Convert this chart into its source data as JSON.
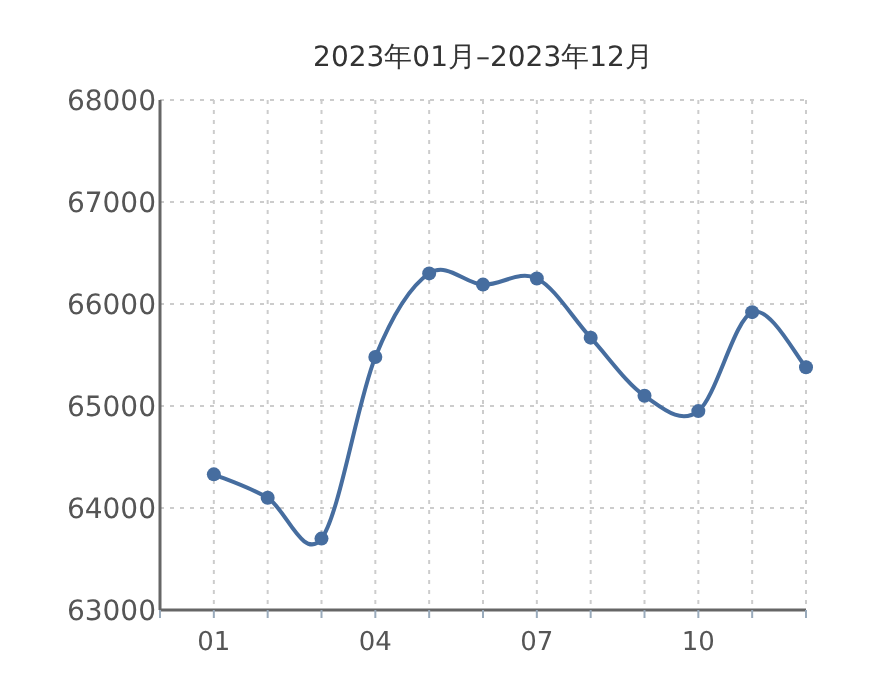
{
  "chart_data": {
    "type": "line",
    "title": "2023年01月–2023年12月",
    "categories": [
      "01",
      null,
      null,
      "04",
      null,
      null,
      "07",
      null,
      null,
      "10",
      null,
      null
    ],
    "series": [
      {
        "color": "#466d9f",
        "values": [
          64330,
          64100,
          63700,
          65480,
          66300,
          66190,
          66250,
          65670,
          65100,
          64950,
          65920,
          65380
        ]
      }
    ],
    "ylim": [
      63000,
      68000
    ],
    "yticks": [
      63000,
      64000,
      65000,
      66000,
      67000,
      68000
    ],
    "grid": true,
    "marker": "circle",
    "line_style": "solid"
  }
}
